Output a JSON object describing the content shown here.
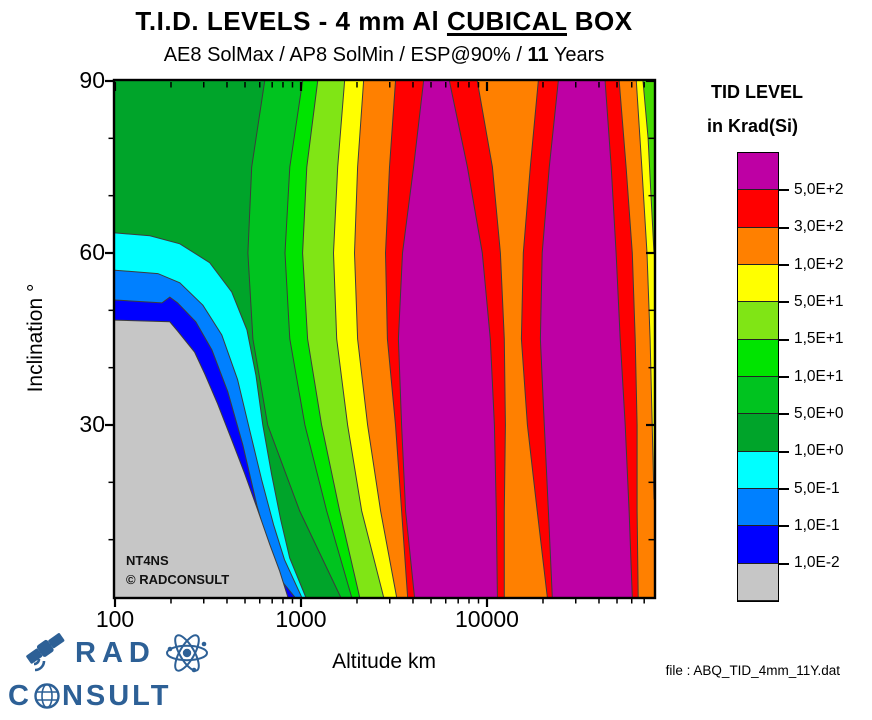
{
  "header": {
    "title_prefix": "T.I.D. LEVELS - 4 mm Al ",
    "title_underline": "CUBICAL",
    "title_suffix": " BOX",
    "subtitle_prefix": "AE8 SolMax / AP8 SolMin / ESP@90% / ",
    "subtitle_bold": "11",
    "subtitle_suffix": " Years"
  },
  "axes": {
    "x_label": "Altitude km",
    "y_label": "Inclination °",
    "x_major": [
      {
        "value": 100,
        "label": "100"
      },
      {
        "value": 1000,
        "label": "1000"
      },
      {
        "value": 10000,
        "label": "10000"
      }
    ],
    "x_minor": [
      200,
      300,
      400,
      500,
      600,
      700,
      800,
      900,
      2000,
      3000,
      4000,
      5000,
      6000,
      7000,
      8000,
      9000,
      20000,
      30000,
      40000,
      50000,
      60000,
      70000
    ],
    "y_major": [
      {
        "deg": 90,
        "label": "90"
      },
      {
        "deg": 60,
        "label": "60"
      },
      {
        "deg": 30,
        "label": "30"
      }
    ],
    "y_minor": [
      10,
      20,
      40,
      50,
      70,
      80
    ]
  },
  "plot_annotations": {
    "line1": "NT4NS",
    "line2": "©  RADCONSULT"
  },
  "legend": {
    "title_line1": "TID LEVEL",
    "title_line2": "in Krad(Si)",
    "labels": [
      "5,0E+2",
      "3,0E+2",
      "1,0E+2",
      "5,0E+1",
      "1,5E+1",
      "1,0E+1",
      "5,0E+0",
      "1,0E+0",
      "5,0E-1",
      "1,0E-1",
      "1,0E-2"
    ],
    "colors": [
      "#BE00A4",
      "#FF0000",
      "#FF8000",
      "#FFFF00",
      "#80E515",
      "#00E400",
      "#00C31F",
      "#00A42A",
      "#00FFFF",
      "#0080FF",
      "#0000FF",
      "#C6C6C6"
    ]
  },
  "footer": {
    "file_label": "file : ABQ_TID_4mm_11Y.dat"
  },
  "logo": {
    "line1": "RAD",
    "line2_prefix": "C",
    "line2_suffix": "NSULT",
    "color": "#2D6096"
  },
  "chart_data": {
    "type": "heatmap",
    "subtype": "filled_contour",
    "title": "T.I.D. LEVELS - 4 mm Al CUBICAL BOX",
    "subtitle": "AE8 SolMax / AP8 SolMin / ESP@90% / 11 Years",
    "xlabel": "Altitude km",
    "ylabel": "Inclination °",
    "x_scale": "log",
    "xlim": [
      100,
      79000
    ],
    "ylim": [
      0,
      90
    ],
    "grid": false,
    "legend_position": "right",
    "units": "Krad(Si)",
    "levels_krad": [
      0.01,
      0.1,
      0.5,
      1.0,
      5.0,
      10,
      15,
      50,
      100,
      300,
      500
    ],
    "line_color": "#3C3C3C",
    "band_colors": {
      "gray": "#C6C6C6",
      "blue": "#0000FF",
      "dodger": "#0080FF",
      "cyan": "#00FFFF",
      "green_dark": "#00A42A",
      "green_mid": "#00C31F",
      "green_bright": "#00E400",
      "green_yellow": "#80E515",
      "yellow": "#FFFF00",
      "orange": "#FF8000",
      "red": "#FF0000",
      "magenta": "#BE00A4"
    },
    "inclination_samples": [
      90,
      75,
      60,
      45,
      30,
      15,
      0
    ],
    "boundaries": [
      {
        "name": "5 krad rising",
        "level_krad": 5,
        "fill": "#00C31F",
        "alt": [
          638,
          543,
          518,
          551,
          662,
          984,
          1633
        ]
      },
      {
        "name": "10 krad rising",
        "level_krad": 10,
        "fill": "#00E400",
        "alt": [
          1020,
          870,
          820,
          870,
          1050,
          1375,
          1870
        ]
      },
      {
        "name": "15 krad rising",
        "level_krad": 15,
        "fill": "#80E515",
        "alt": [
          1230,
          1075,
          1020,
          1085,
          1290,
          1615,
          2065
        ]
      },
      {
        "name": "50 krad rising",
        "level_krad": 50,
        "fill": "#FFFF00",
        "alt": [
          1715,
          1575,
          1495,
          1555,
          1780,
          2120,
          2780
        ]
      },
      {
        "name": "100 krad rising",
        "level_krad": 100,
        "fill": "#FF8000",
        "alt": [
          2170,
          2015,
          1940,
          2015,
          2280,
          2680,
          3265
        ]
      },
      {
        "name": "300 krad rising",
        "level_krad": 300,
        "fill": "#FF0000",
        "alt": [
          3220,
          2990,
          2845,
          2915,
          3220,
          3475,
          3740
        ]
      },
      {
        "name": "500 krad rising lobe1",
        "level_krad": 500,
        "fill": "#BE00A4",
        "alt": [
          4560,
          4030,
          3515,
          3340,
          3475,
          3650,
          4075
        ]
      },
      {
        "name": "500 krad falling lobe1",
        "level_krad": 500,
        "fill": "#FF0000",
        "alt": [
          6280,
          7850,
          9440,
          10420,
          10965,
          11220,
          11375
        ]
      },
      {
        "name": "300 krad falling mid",
        "level_krad": 300,
        "fill": "#FF8000",
        "alt": [
          8870,
          10690,
          11800,
          12390,
          12560,
          12390,
          12390
        ]
      },
      {
        "name": "300 krad rising lobe2",
        "level_krad": 300,
        "fill": "#FF0000",
        "alt": [
          18880,
          17100,
          15670,
          15310,
          16480,
          18620,
          21090
        ]
      },
      {
        "name": "500 krad rising lobe2",
        "level_krad": 500,
        "fill": "#BE00A4",
        "alt": [
          24160,
          21630,
          19815,
          19365,
          20325,
          21380,
          22445
        ]
      },
      {
        "name": "500 krad falling lobe2",
        "level_krad": 500,
        "fill": "#FF0000",
        "alt": [
          43150,
          46550,
          49435,
          52000,
          55335,
          58075,
          60395
        ]
      },
      {
        "name": "300 krad falling right",
        "level_krad": 300,
        "fill": "#FF8000",
        "alt": [
          51400,
          55975,
          60395,
          62660,
          64120,
          64120,
          65010
        ]
      }
    ],
    "wedges": [
      {
        "name": "100 krad falling top-right",
        "level_krad": 100,
        "fill": "#FFFF00",
        "points": [
          [
            63500,
            90
          ],
          [
            68000,
            75
          ],
          [
            72500,
            60
          ],
          [
            75300,
            45
          ],
          [
            77300,
            30
          ],
          [
            79000,
            17
          ]
        ]
      },
      {
        "name": "50 krad falling top-right corner",
        "level_krad": 50,
        "fill": "#45DB00",
        "points": [
          [
            69000,
            90
          ],
          [
            73500,
            80
          ],
          [
            76200,
            70
          ],
          [
            79000,
            60
          ]
        ]
      }
    ],
    "lower_left": [
      {
        "name": "1 krad contour (cyan shell)",
        "level_krad": 1.0,
        "fill": "#00FFFF",
        "points": [
          [
            100,
            63.5
          ],
          [
            154,
            63
          ],
          [
            223,
            61.6
          ],
          [
            323,
            58.3
          ],
          [
            424,
            53.2
          ],
          [
            512,
            46.6
          ],
          [
            572,
            38.7
          ],
          [
            623,
            30
          ],
          [
            696,
            21.3
          ],
          [
            779,
            13.4
          ],
          [
            869,
            6.8
          ],
          [
            1060,
            0
          ]
        ]
      },
      {
        "name": "0.5 krad contour (light blue shell)",
        "level_krad": 0.5,
        "fill": "#0080FF",
        "points": [
          [
            100,
            57
          ],
          [
            170,
            56.4
          ],
          [
            223,
            54.8
          ],
          [
            297,
            50.9
          ],
          [
            375,
            45.7
          ],
          [
            456,
            37.9
          ],
          [
            530,
            29.1
          ],
          [
            615,
            20.4
          ],
          [
            712,
            12.6
          ],
          [
            815,
            6.5
          ],
          [
            1007,
            0
          ]
        ]
      },
      {
        "name": "0.1 krad contour (blue shell)",
        "level_krad": 0.1,
        "fill": "#0000FF",
        "points": [
          [
            100,
            51.8
          ],
          [
            179,
            51.3
          ],
          [
            197,
            52.3
          ],
          [
            217,
            51.3
          ],
          [
            272,
            48
          ],
          [
            332,
            43.1
          ],
          [
            404,
            35.8
          ],
          [
            487,
            26.5
          ],
          [
            579,
            16
          ],
          [
            696,
            6.8
          ],
          [
            779,
            3
          ],
          [
            925,
            0
          ]
        ]
      },
      {
        "name": "0.01 krad region (gray)",
        "level_krad": 0.01,
        "fill": "#C6C6C6",
        "points": [
          [
            100,
            48.3
          ],
          [
            197,
            48
          ],
          [
            217,
            46.4
          ],
          [
            268,
            42.7
          ],
          [
            304,
            38.9
          ],
          [
            356,
            33.7
          ],
          [
            424,
            27.4
          ],
          [
            498,
            21.5
          ],
          [
            585,
            15.2
          ],
          [
            679,
            9.2
          ],
          [
            768,
            4.5
          ],
          [
            849,
            0
          ]
        ]
      }
    ]
  }
}
